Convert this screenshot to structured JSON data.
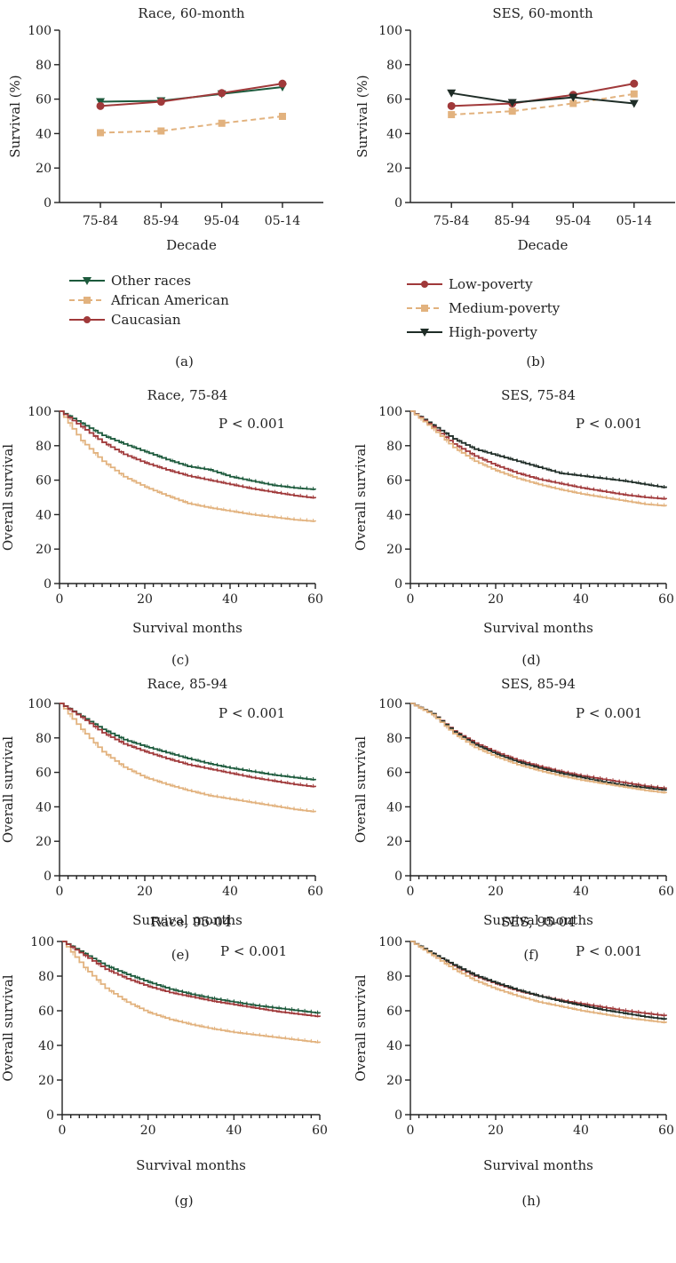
{
  "colors": {
    "other_races": "#1c5a3c",
    "african_american": "#e2b27e",
    "caucasian": "#a0393a",
    "low_poverty": "#a0393a",
    "medium_poverty": "#e2b27e",
    "high_poverty": "#1f2d27"
  },
  "chart_data": [
    {
      "id": "a",
      "type": "line",
      "panel_label": "(a)",
      "title": "Race, 60-month",
      "xlabel": "Decade",
      "ylabel": "Survival (%)",
      "categories": [
        "75-84",
        "85-94",
        "95-04",
        "05-14"
      ],
      "ylim": [
        0,
        100
      ],
      "yticks": [
        "0",
        "20",
        "40",
        "60",
        "80",
        "100"
      ],
      "legend_position": "below",
      "series": [
        {
          "name": "Other races",
          "color": "#1c5a3c",
          "marker": "triangle-down",
          "dash": "solid",
          "values": [
            58.5,
            59,
            63,
            67
          ]
        },
        {
          "name": "African American",
          "color": "#e2b27e",
          "marker": "square",
          "dash": "dashed",
          "values": [
            40.5,
            41.5,
            46,
            50
          ]
        },
        {
          "name": "Caucasian",
          "color": "#a0393a",
          "marker": "circle",
          "dash": "solid",
          "values": [
            56,
            58.5,
            63.5,
            69
          ]
        }
      ]
    },
    {
      "id": "b",
      "type": "line",
      "panel_label": "(b)",
      "title": "SES, 60-month",
      "xlabel": "Decade",
      "ylabel": "Survival (%)",
      "categories": [
        "75-84",
        "85-94",
        "95-04",
        "05-14"
      ],
      "ylim": [
        0,
        100
      ],
      "yticks": [
        "0",
        "20",
        "40",
        "60",
        "80",
        "100"
      ],
      "legend_position": "below",
      "series": [
        {
          "name": "Low-poverty",
          "color": "#a0393a",
          "marker": "circle",
          "dash": "solid",
          "values": [
            56,
            57.5,
            62.5,
            69
          ]
        },
        {
          "name": "Medium-poverty",
          "color": "#e2b27e",
          "marker": "square",
          "dash": "dashed",
          "values": [
            51,
            53,
            57.5,
            63
          ]
        },
        {
          "name": "High-poverty",
          "color": "#1f2d27",
          "marker": "triangle-down",
          "dash": "solid",
          "values": [
            63.5,
            58,
            61,
            57.5
          ]
        }
      ]
    },
    {
      "id": "c",
      "type": "line",
      "panel_label": "(c)",
      "title": "Race, 75-84",
      "annotation": "P < 0.001",
      "xlabel": "Survival months",
      "ylabel": "Overall survival",
      "xlim": [
        0,
        60
      ],
      "ylim": [
        0,
        100
      ],
      "xticks": [
        "0",
        "20",
        "40",
        "60"
      ],
      "yticks": [
        "0",
        "20",
        "40",
        "60",
        "80",
        "100"
      ],
      "x": [
        0,
        5,
        10,
        15,
        20,
        25,
        30,
        35,
        40,
        45,
        50,
        55,
        60
      ],
      "series": [
        {
          "name": "Other races",
          "color": "#1c5a3c",
          "values": [
            100,
            93,
            86,
            81,
            76.5,
            72,
            68,
            66,
            62,
            59.5,
            57,
            55.5,
            54.5
          ]
        },
        {
          "name": "African American",
          "color": "#e2b27e",
          "values": [
            100,
            83,
            71,
            62,
            56,
            51,
            46.5,
            44,
            42,
            40,
            38.5,
            37,
            36
          ]
        },
        {
          "name": "Caucasian",
          "color": "#a0393a",
          "values": [
            100,
            91,
            82,
            75,
            70,
            66,
            62.5,
            60,
            57.5,
            55,
            53,
            51,
            49.5
          ]
        }
      ]
    },
    {
      "id": "d",
      "type": "line",
      "panel_label": "(d)",
      "title": "SES, 75-84",
      "annotation": "P < 0.001",
      "xlabel": "Survival months",
      "ylabel": "Overall survival",
      "xlim": [
        0,
        60
      ],
      "ylim": [
        0,
        100
      ],
      "xticks": [
        "0",
        "20",
        "40",
        "60"
      ],
      "yticks": [
        "0",
        "20",
        "40",
        "60",
        "80",
        "100"
      ],
      "x": [
        0,
        5,
        10,
        15,
        20,
        25,
        30,
        35,
        40,
        45,
        50,
        55,
        60
      ],
      "series": [
        {
          "name": "High-poverty",
          "color": "#1f2d27",
          "values": [
            100,
            92,
            84,
            78,
            74.5,
            71,
            67.5,
            64,
            62.5,
            61,
            59.5,
            57.5,
            55.5
          ]
        },
        {
          "name": "Low-poverty",
          "color": "#a0393a",
          "values": [
            100,
            91,
            81,
            74,
            68.5,
            64,
            60.5,
            58,
            55.5,
            53.5,
            51.5,
            50,
            49
          ]
        },
        {
          "name": "Medium-poverty",
          "color": "#e2b27e",
          "values": [
            100,
            90,
            79,
            71,
            65.5,
            61,
            57.5,
            54.5,
            52,
            50,
            48,
            46,
            45
          ]
        }
      ]
    },
    {
      "id": "e",
      "type": "line",
      "panel_label": "(e)",
      "title": "Race, 85-94",
      "annotation": "P < 0.001",
      "xlabel": "Survival months",
      "ylabel": "Overall survival",
      "xlim": [
        0,
        60
      ],
      "ylim": [
        0,
        100
      ],
      "xticks": [
        "0",
        "20",
        "40",
        "60"
      ],
      "yticks": [
        "0",
        "20",
        "40",
        "60",
        "80",
        "100"
      ],
      "x": [
        0,
        5,
        10,
        15,
        20,
        25,
        30,
        35,
        40,
        45,
        50,
        55,
        60
      ],
      "series": [
        {
          "name": "Other races",
          "color": "#1c5a3c",
          "values": [
            100,
            92.5,
            85,
            79,
            75,
            71.5,
            68,
            65,
            62.5,
            60.5,
            58.5,
            57,
            55.5
          ]
        },
        {
          "name": "African American",
          "color": "#e2b27e",
          "values": [
            100,
            85,
            72,
            63,
            57,
            53,
            49.5,
            46.5,
            44.5,
            42.5,
            40.5,
            38.5,
            37
          ]
        },
        {
          "name": "Caucasian",
          "color": "#a0393a",
          "values": [
            100,
            92,
            83,
            76.5,
            72,
            68,
            64.5,
            62,
            59.5,
            57,
            55,
            53,
            51.5
          ]
        }
      ]
    },
    {
      "id": "f",
      "type": "line",
      "panel_label": "(f)",
      "title": "SES, 85-94",
      "annotation": "P < 0.001",
      "xlabel": "Survival months",
      "ylabel": "Overall survival",
      "xlim": [
        0,
        60
      ],
      "ylim": [
        0,
        100
      ],
      "xticks": [
        "0",
        "20",
        "40",
        "60"
      ],
      "yticks": [
        "0",
        "20",
        "40",
        "60",
        "80",
        "100"
      ],
      "x": [
        0,
        5,
        10,
        15,
        20,
        25,
        30,
        35,
        40,
        45,
        50,
        55,
        60
      ],
      "series": [
        {
          "name": "Low-poverty",
          "color": "#a0393a",
          "values": [
            100,
            94,
            84,
            77,
            71.5,
            67,
            63.5,
            60.5,
            58,
            56,
            54,
            52,
            50.5
          ]
        },
        {
          "name": "High-poverty",
          "color": "#1f2d27",
          "values": [
            100,
            94,
            83.5,
            76,
            70.5,
            66,
            62.5,
            59.5,
            57,
            54.5,
            52.5,
            51,
            49.5
          ]
        },
        {
          "name": "Medium-poverty",
          "color": "#e2b27e",
          "values": [
            100,
            93.5,
            82.5,
            74.5,
            69,
            64.5,
            61,
            58,
            55.5,
            53.5,
            51.5,
            49.5,
            48
          ]
        }
      ]
    },
    {
      "id": "g",
      "type": "line",
      "panel_label": "(g)",
      "title": "Race, 95-04",
      "annotation": "P < 0.001",
      "xlabel": "Survival months",
      "ylabel": "Overall survival",
      "xlim": [
        0,
        60
      ],
      "ylim": [
        0,
        100
      ],
      "xticks": [
        "0",
        "20",
        "40",
        "60"
      ],
      "yticks": [
        "0",
        "20",
        "40",
        "60",
        "80",
        "100"
      ],
      "x": [
        0,
        5,
        10,
        15,
        20,
        25,
        30,
        35,
        40,
        45,
        50,
        55,
        60
      ],
      "series": [
        {
          "name": "Other races",
          "color": "#1c5a3c",
          "values": [
            100,
            93,
            86,
            81,
            76.5,
            72.5,
            69.5,
            67,
            65,
            63,
            61.5,
            60,
            58.5
          ]
        },
        {
          "name": "African American",
          "color": "#e2b27e",
          "values": [
            100,
            85,
            73,
            65,
            59,
            55,
            52,
            49.5,
            47.5,
            46,
            44.5,
            43,
            41.5
          ]
        },
        {
          "name": "Caucasian",
          "color": "#a0393a",
          "values": [
            100,
            92,
            84,
            78.5,
            74,
            70.5,
            68,
            65.5,
            63.5,
            61.5,
            59.5,
            58,
            56.5
          ]
        }
      ]
    },
    {
      "id": "h",
      "type": "line",
      "panel_label": "(h)",
      "title": "SES, 95-04",
      "annotation": "P < 0.001",
      "xlabel": "Survival months",
      "ylabel": "Overall survival",
      "xlim": [
        0,
        60
      ],
      "ylim": [
        0,
        100
      ],
      "xticks": [
        "0",
        "20",
        "40",
        "60"
      ],
      "yticks": [
        "0",
        "20",
        "40",
        "60",
        "80",
        "100"
      ],
      "x": [
        0,
        5,
        10,
        15,
        20,
        25,
        30,
        35,
        40,
        45,
        50,
        55,
        60
      ],
      "series": [
        {
          "name": "Low-poverty",
          "color": "#a0393a",
          "values": [
            100,
            93,
            86,
            80,
            75.5,
            71.5,
            68.5,
            66,
            64,
            62,
            60,
            58.5,
            57
          ]
        },
        {
          "name": "High-poverty",
          "color": "#1f2d27",
          "values": [
            100,
            93,
            86.5,
            80.5,
            76,
            72,
            68.5,
            65.5,
            63,
            60.5,
            58.5,
            56.5,
            55
          ]
        },
        {
          "name": "Medium-poverty",
          "color": "#e2b27e",
          "values": [
            100,
            92,
            84,
            77.5,
            72.5,
            68.5,
            65,
            62.5,
            60,
            58,
            56,
            54.5,
            53
          ]
        }
      ]
    }
  ]
}
